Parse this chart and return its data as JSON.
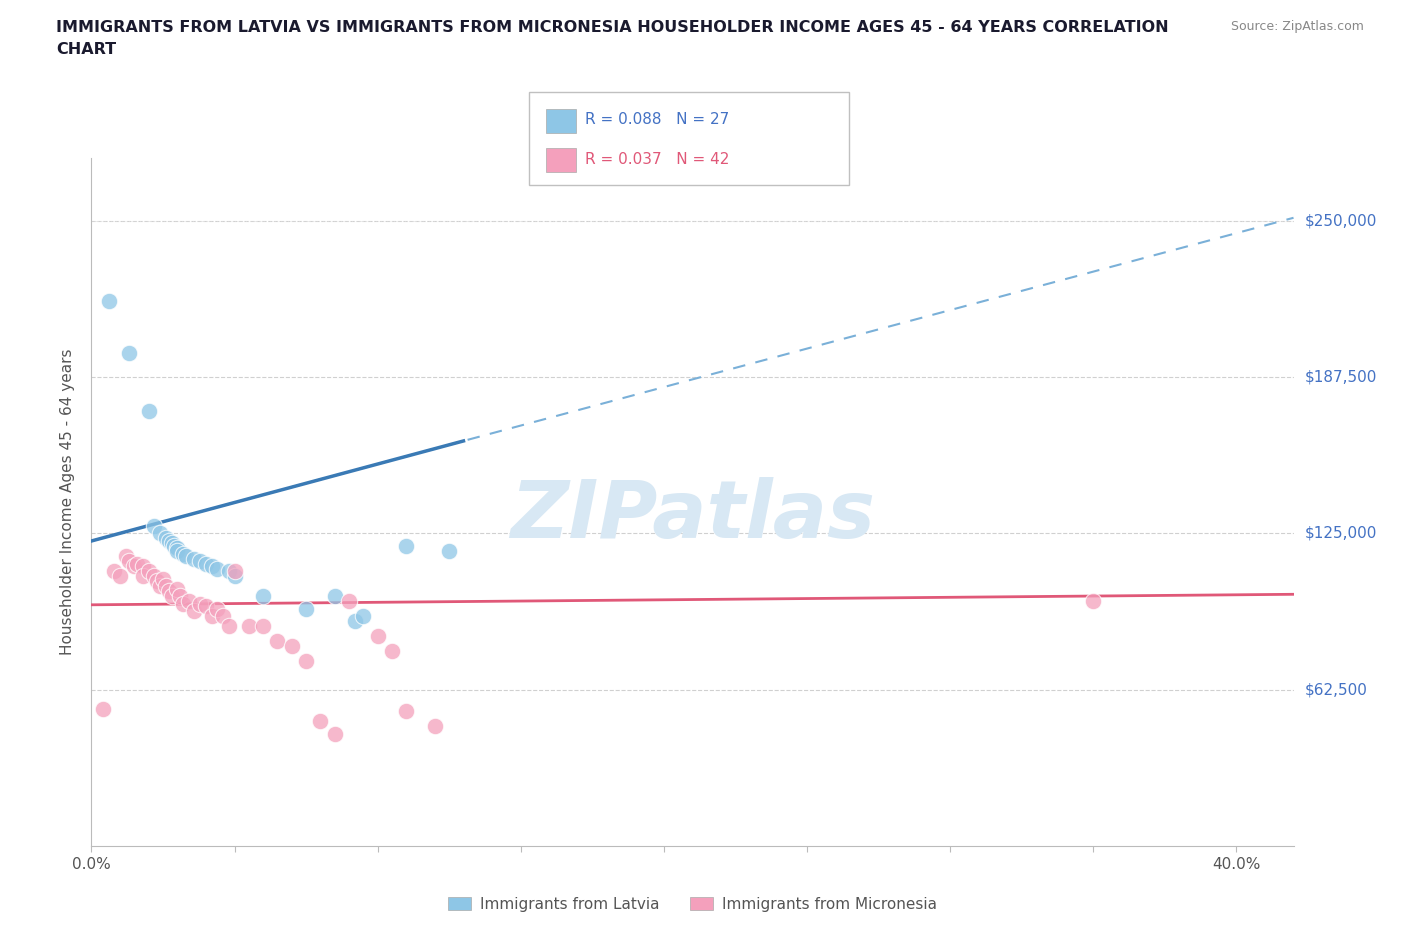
{
  "title_line1": "IMMIGRANTS FROM LATVIA VS IMMIGRANTS FROM MICRONESIA HOUSEHOLDER INCOME AGES 45 - 64 YEARS CORRELATION",
  "title_line2": "CHART",
  "source": "Source: ZipAtlas.com",
  "ylabel": "Householder Income Ages 45 - 64 years",
  "xlim": [
    0.0,
    0.42
  ],
  "ylim": [
    0,
    275000
  ],
  "yticks": [
    0,
    62500,
    125000,
    187500,
    250000
  ],
  "ytick_labels_right": [
    "",
    "$62,500",
    "$125,000",
    "$187,500",
    "$250,000"
  ],
  "xticks": [
    0.0,
    0.05,
    0.1,
    0.15,
    0.2,
    0.25,
    0.3,
    0.35,
    0.4
  ],
  "xtick_labels": [
    "0.0%",
    "",
    "",
    "",
    "",
    "",
    "",
    "",
    "40.0%"
  ],
  "latvia_color": "#8ec6e6",
  "micronesia_color": "#f4a0bc",
  "latvia_line_solid_color": "#3a7ab5",
  "latvia_line_dash_color": "#7ab0d8",
  "micronesia_line_color": "#e05878",
  "grid_color": "#d0d0d0",
  "watermark_text": "ZIPatlas",
  "watermark_color": "#d8e8f4",
  "legend_label1": "R = 0.088   N = 27",
  "legend_label2": "R = 0.037   N = 42",
  "legend_color1": "#4472c4",
  "legend_color2": "#e05878",
  "latvia_x": [
    0.006,
    0.013,
    0.02,
    0.022,
    0.024,
    0.026,
    0.027,
    0.028,
    0.029,
    0.03,
    0.03,
    0.032,
    0.033,
    0.036,
    0.038,
    0.04,
    0.042,
    0.044,
    0.048,
    0.05,
    0.06,
    0.075,
    0.085,
    0.092,
    0.095,
    0.11,
    0.125
  ],
  "latvia_y": [
    218000,
    197000,
    174000,
    128000,
    125000,
    123000,
    122000,
    121000,
    120000,
    119000,
    118000,
    117000,
    116000,
    115000,
    114000,
    113000,
    112000,
    111000,
    110000,
    108000,
    100000,
    95000,
    100000,
    90000,
    92000,
    120000,
    118000
  ],
  "micronesia_x": [
    0.004,
    0.008,
    0.01,
    0.012,
    0.013,
    0.015,
    0.016,
    0.018,
    0.018,
    0.02,
    0.022,
    0.023,
    0.024,
    0.025,
    0.026,
    0.027,
    0.028,
    0.03,
    0.031,
    0.032,
    0.034,
    0.036,
    0.038,
    0.04,
    0.042,
    0.044,
    0.046,
    0.048,
    0.05,
    0.055,
    0.06,
    0.065,
    0.07,
    0.075,
    0.08,
    0.085,
    0.09,
    0.1,
    0.105,
    0.11,
    0.12,
    0.35
  ],
  "micronesia_y": [
    55000,
    110000,
    108000,
    116000,
    114000,
    112000,
    113000,
    112000,
    108000,
    110000,
    108000,
    106000,
    104000,
    107000,
    104000,
    102000,
    100000,
    103000,
    100000,
    97000,
    98000,
    94000,
    97000,
    96000,
    92000,
    95000,
    92000,
    88000,
    110000,
    88000,
    88000,
    82000,
    80000,
    74000,
    50000,
    45000,
    98000,
    84000,
    78000,
    54000,
    48000,
    98000
  ]
}
